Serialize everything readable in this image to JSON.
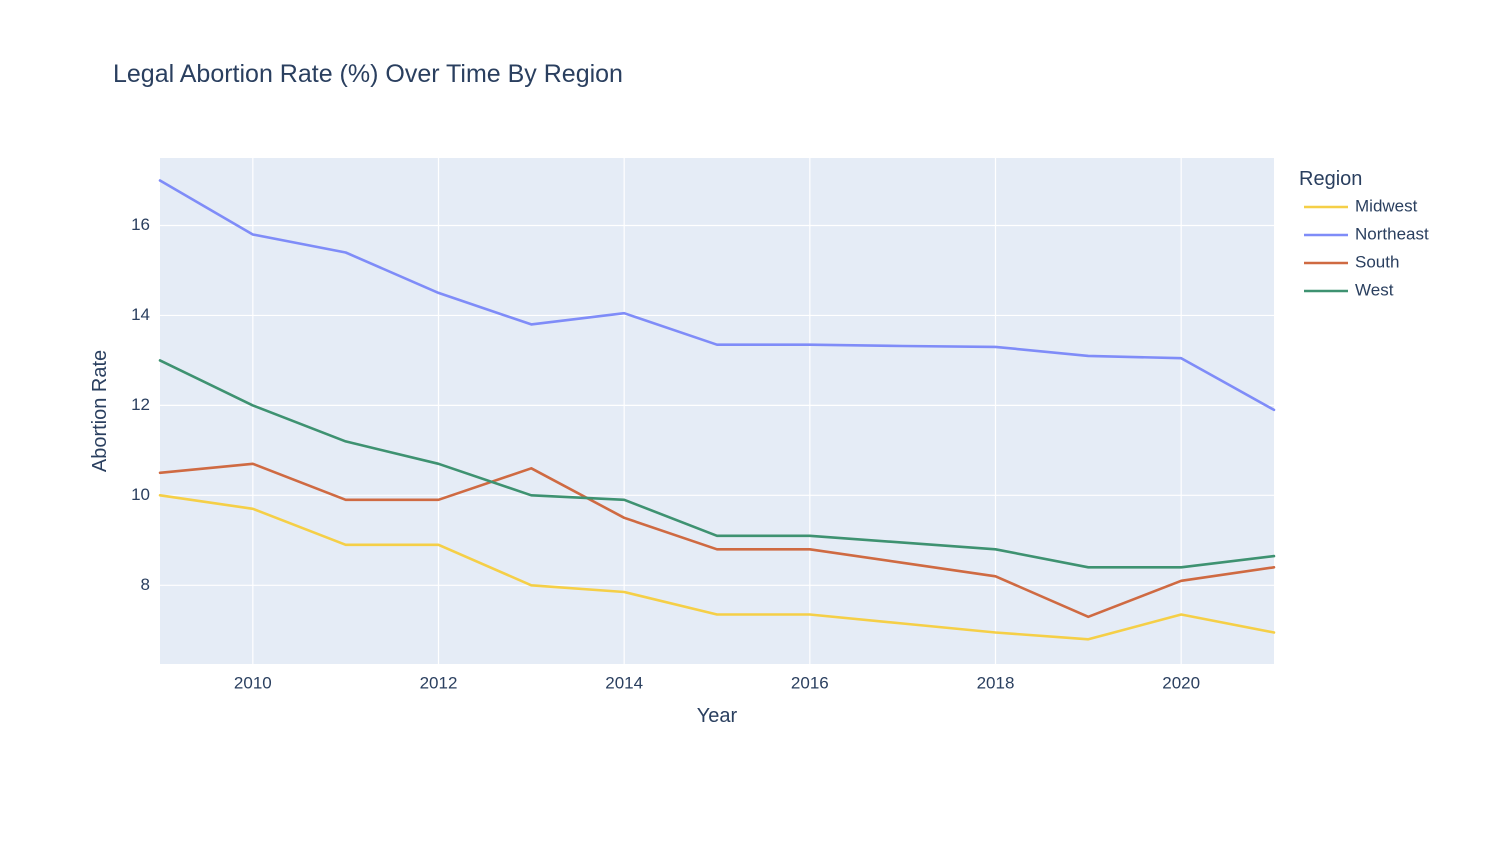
{
  "chart_data": {
    "type": "line",
    "title": "Legal Abortion Rate (%) Over Time By Region",
    "xlabel": "Year",
    "ylabel": "Abortion Rate",
    "x": [
      2009,
      2010,
      2011,
      2012,
      2013,
      2014,
      2015,
      2016,
      2017,
      2018,
      2019,
      2020,
      2021
    ],
    "xlim": [
      2009,
      2021
    ],
    "ylim": [
      6.25,
      17.5
    ],
    "xticks": [
      2010,
      2012,
      2014,
      2016,
      2018,
      2020
    ],
    "yticks": [
      8,
      10,
      12,
      14,
      16
    ],
    "grid": true,
    "legend": {
      "title": "Region",
      "placement": "right"
    },
    "series": [
      {
        "name": "Midwest",
        "color": "#f5cf47",
        "values": [
          10.0,
          9.7,
          8.9,
          8.9,
          8.0,
          7.85,
          7.35,
          7.35,
          7.15,
          6.95,
          6.8,
          7.35,
          6.95
        ]
      },
      {
        "name": "Northeast",
        "color": "#7f8cf8",
        "values": [
          17.0,
          15.8,
          15.4,
          14.5,
          13.8,
          14.05,
          13.35,
          13.35,
          13.32,
          13.3,
          13.1,
          13.05,
          11.9
        ]
      },
      {
        "name": "South",
        "color": "#cf6a42",
        "values": [
          10.5,
          10.7,
          9.9,
          9.9,
          10.6,
          9.5,
          8.8,
          8.8,
          8.5,
          8.2,
          7.3,
          8.1,
          8.4
        ]
      },
      {
        "name": "West",
        "color": "#3e9271",
        "values": [
          13.0,
          12.0,
          11.2,
          10.7,
          10.0,
          9.9,
          9.1,
          9.1,
          8.95,
          8.8,
          8.4,
          8.4,
          8.65
        ]
      }
    ]
  }
}
